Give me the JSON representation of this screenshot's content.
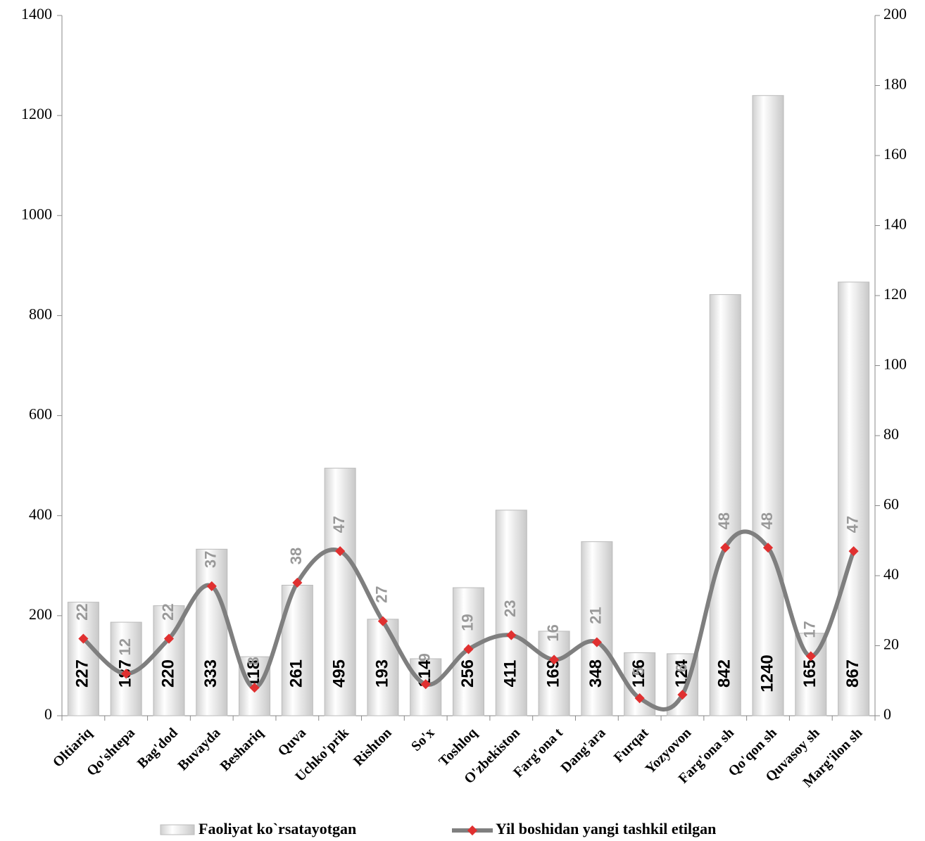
{
  "chart_data": {
    "type": "bar-line",
    "categories": [
      "Oltiariq",
      "Qo'shtepa",
      "Bag'dod",
      "Buvayda",
      "Beshariq",
      "Quva",
      "Uchko'prik",
      "Rishton",
      "So'x",
      "Toshloq",
      "O'zbekiston",
      "Farg'ona t",
      "Dang'ara",
      "Furqat",
      "Yozyovon",
      "Farg'ona sh",
      "Qo'qon sh",
      "Quvasoy sh",
      "Marg'ilon sh"
    ],
    "series": [
      {
        "name": "Faoliyat ko`rsatayotgan",
        "type": "bar",
        "color": "#e6e6e6",
        "values": [
          227,
          187,
          220,
          333,
          118,
          261,
          495,
          193,
          114,
          256,
          411,
          169,
          348,
          126,
          124,
          842,
          1240,
          165,
          867
        ]
      },
      {
        "name": "Yil boshidan yangi tashkil etilgan",
        "type": "line",
        "axis": "y2",
        "color": "#7f7f7f",
        "marker_color": "#e03030",
        "values": [
          22,
          12,
          22,
          37,
          8,
          38,
          47,
          27,
          9,
          19,
          23,
          16,
          21,
          5,
          6,
          48,
          48,
          17,
          47
        ]
      }
    ],
    "ylim": [
      0,
      1400
    ],
    "yticks": [
      0,
      200,
      400,
      600,
      800,
      1000,
      1200,
      1400
    ],
    "y2lim": [
      0,
      200
    ],
    "y2ticks": [
      0,
      20,
      40,
      60,
      80,
      100,
      120,
      140,
      160,
      180,
      200
    ],
    "legend": "bottom"
  }
}
